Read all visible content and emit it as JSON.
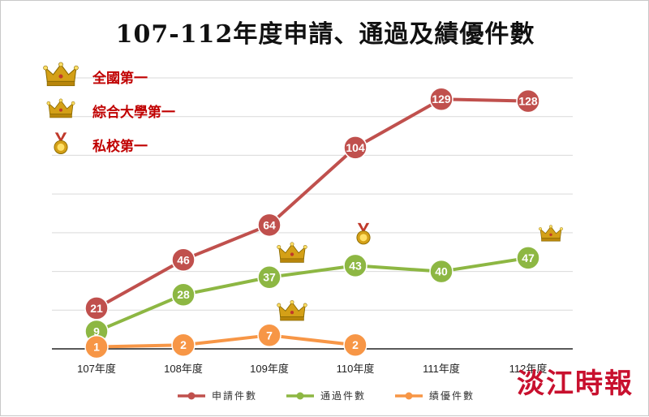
{
  "title": "107-112年度申請、通過及績優件數",
  "watermark": "淡江時報",
  "colors": {
    "apply": "#c0504d",
    "pass": "#8db743",
    "merit": "#f79646",
    "grid": "#d9d9d9",
    "axis": "#222222",
    "annot": "#c00000",
    "gold": "#d4a017"
  },
  "annotations": [
    {
      "label": "全國第一",
      "icon": "gold-crown-icon"
    },
    {
      "label": "綜合大學第一",
      "icon": "small-crown-icon"
    },
    {
      "label": "私校第一",
      "icon": "medal-icon"
    }
  ],
  "chart_data": {
    "type": "line",
    "categories": [
      "107年度",
      "108年度",
      "109年度",
      "110年度",
      "111年度",
      "112年度"
    ],
    "ylim": [
      0,
      140
    ],
    "grid": true,
    "legend": "bottom",
    "series": [
      {
        "key": "apply",
        "name": "申請件數",
        "values": [
          21,
          46,
          64,
          104,
          129,
          128
        ]
      },
      {
        "key": "pass",
        "name": "通過件數",
        "values": [
          9,
          28,
          37,
          43,
          40,
          47
        ]
      },
      {
        "key": "merit",
        "name": "績優件數",
        "values": [
          1,
          2,
          7,
          2,
          null,
          null
        ]
      }
    ],
    "markers": [
      {
        "series": "pass",
        "index": 2,
        "icon": "gold-crown-icon"
      },
      {
        "series": "pass",
        "index": 3,
        "icon": "medal-icon"
      },
      {
        "series": "pass",
        "index": 5,
        "icon": "small-crown-icon"
      },
      {
        "series": "merit",
        "index": 2,
        "icon": "gold-crown-icon"
      }
    ]
  }
}
